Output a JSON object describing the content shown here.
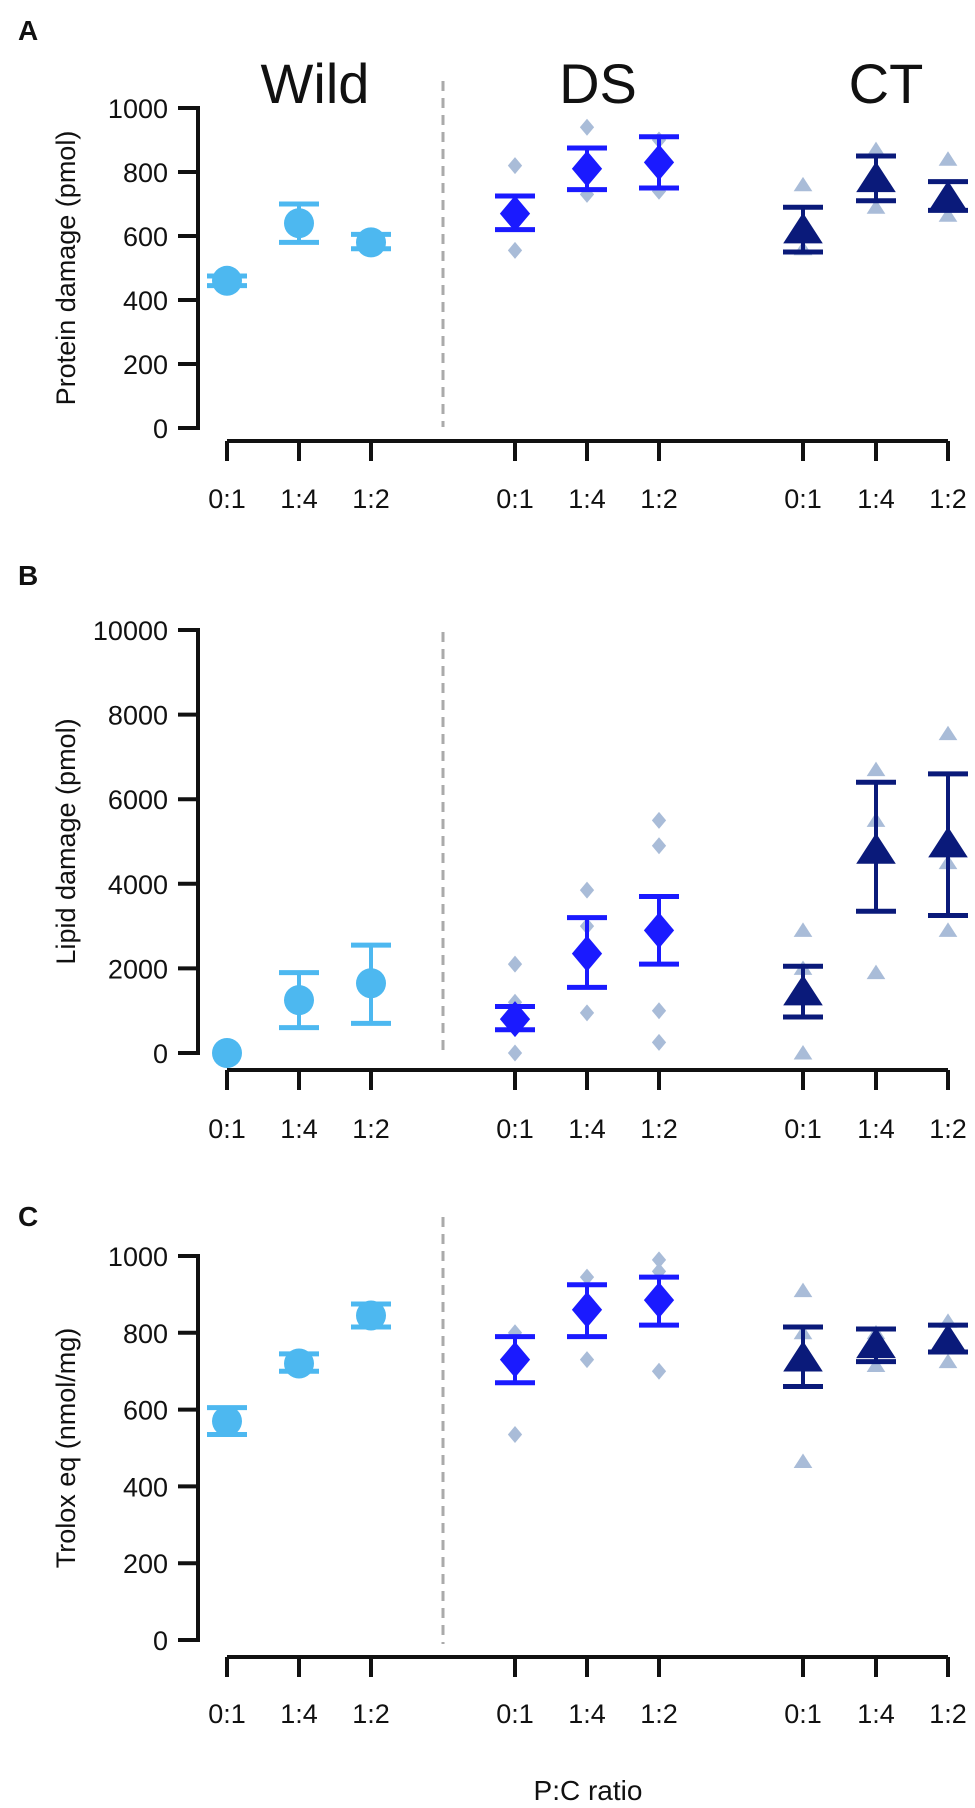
{
  "figure": {
    "xlabel": "P:C ratio",
    "groups": [
      "Wild",
      "DS",
      "CT"
    ],
    "colors": {
      "Wild": "#4db8f0",
      "DS": "#1a1aff",
      "CT": "#0a1a7a",
      "raw": "#a9bcd8",
      "divider": "#aaaaaa",
      "axis": "#111111"
    },
    "markers": {
      "Wild": "circle",
      "DS": "diamond",
      "CT": "triangle"
    }
  },
  "chart_data": [
    {
      "panel": "A",
      "type": "scatter",
      "ylabel": "Protein damage (pmol)",
      "ylim": [
        0,
        1000
      ],
      "yticks": [
        0,
        200,
        400,
        600,
        800,
        1000
      ],
      "categories": [
        "0:1",
        "1:4",
        "1:2"
      ],
      "series": [
        {
          "name": "Wild",
          "mean": [
            460,
            640,
            580
          ],
          "lo": [
            445,
            580,
            560
          ],
          "hi": [
            475,
            700,
            605
          ],
          "raw": [
            [],
            [],
            []
          ]
        },
        {
          "name": "DS",
          "mean": [
            670,
            810,
            830
          ],
          "lo": [
            620,
            745,
            750
          ],
          "hi": [
            725,
            875,
            910
          ],
          "raw": [
            [
              820,
              555
            ],
            [
              940,
              730
            ],
            [
              900,
              740
            ]
          ]
        },
        {
          "name": "CT",
          "mean": [
            620,
            780,
            720
          ],
          "lo": [
            550,
            710,
            680
          ],
          "hi": [
            690,
            850,
            770
          ],
          "raw": [
            [
              760,
              560
            ],
            [
              870,
              690
            ],
            [
              840,
              665
            ]
          ]
        }
      ]
    },
    {
      "panel": "B",
      "type": "scatter",
      "ylabel": "Lipid damage (pmol)",
      "ylim": [
        0,
        10000
      ],
      "yticks": [
        0,
        2000,
        4000,
        6000,
        8000,
        10000
      ],
      "categories": [
        "0:1",
        "1:4",
        "1:2"
      ],
      "series": [
        {
          "name": "Wild",
          "mean": [
            0,
            1250,
            1650
          ],
          "lo": [
            0,
            600,
            700
          ],
          "hi": [
            0,
            1900,
            2550
          ],
          "raw": [
            [],
            [],
            []
          ]
        },
        {
          "name": "DS",
          "mean": [
            800,
            2350,
            2900
          ],
          "lo": [
            550,
            1550,
            2100
          ],
          "hi": [
            1100,
            3200,
            3700
          ],
          "raw": [
            [
              2100,
              1200,
              0
            ],
            [
              3850,
              3000,
              950
            ],
            [
              5500,
              4900,
              1000,
              250
            ]
          ]
        },
        {
          "name": "CT",
          "mean": [
            1450,
            4800,
            4950
          ],
          "lo": [
            850,
            3350,
            3250
          ],
          "hi": [
            2050,
            6400,
            6600
          ],
          "raw": [
            [
              2900,
              2000,
              0
            ],
            [
              6700,
              5500,
              1900
            ],
            [
              7550,
              4500,
              2900
            ]
          ]
        }
      ]
    },
    {
      "panel": "C",
      "type": "scatter",
      "ylabel": "Trolox eq (nmol/mg)",
      "ylim": [
        0,
        1000
      ],
      "yticks": [
        0,
        200,
        400,
        600,
        800,
        1000
      ],
      "categories": [
        "0:1",
        "1:4",
        "1:2"
      ],
      "series": [
        {
          "name": "Wild",
          "mean": [
            570,
            720,
            845
          ],
          "lo": [
            535,
            700,
            815
          ],
          "hi": [
            605,
            745,
            875
          ],
          "raw": [
            [],
            [],
            []
          ]
        },
        {
          "name": "DS",
          "mean": [
            730,
            860,
            885
          ],
          "lo": [
            670,
            790,
            820
          ],
          "hi": [
            790,
            925,
            945
          ],
          "raw": [
            [
              800,
              535
            ],
            [
              945,
              730
            ],
            [
              990,
              960,
              700
            ]
          ]
        },
        {
          "name": "CT",
          "mean": [
            735,
            770,
            780
          ],
          "lo": [
            660,
            725,
            750
          ],
          "hi": [
            815,
            810,
            820
          ],
          "raw": [
            [
              910,
              800,
              465
            ],
            [
              800,
              715
            ],
            [
              830,
              725
            ]
          ]
        }
      ]
    }
  ]
}
